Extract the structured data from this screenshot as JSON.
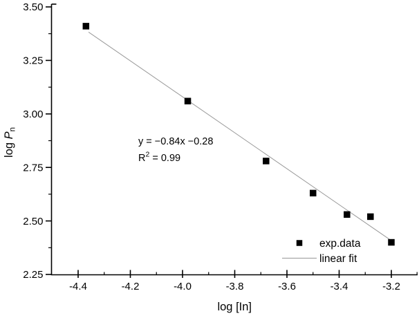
{
  "chart_data": {
    "type": "scatter",
    "title": "",
    "xlabel": "log [In]",
    "ylabel": {
      "prefix": "log ",
      "variable": "P",
      "subscript": "n"
    },
    "xlim": [
      -4.5,
      -3.1
    ],
    "ylim": [
      2.25,
      3.53
    ],
    "grid": false,
    "xticks": {
      "values": [
        -4.4,
        -4.2,
        -4.0,
        -3.8,
        -3.6,
        -3.4,
        -3.2
      ],
      "labels": [
        "-4.4",
        "-4.2",
        "-4.0",
        "-3.8",
        "-3.6",
        "-3.4",
        "-3.2"
      ],
      "minor": [
        -4.3,
        -4.1,
        -3.9,
        -3.7,
        -3.5,
        -3.3,
        -3.1
      ]
    },
    "yticks": {
      "values": [
        2.25,
        2.5,
        2.75,
        3.0,
        3.25,
        3.5
      ],
      "labels": [
        "2.25",
        "2.50",
        "2.75",
        "3.00",
        "3.25",
        "3.50"
      ],
      "minor": [
        2.375,
        2.625,
        2.875,
        3.125,
        3.375
      ]
    },
    "series": [
      {
        "name": "exp.data",
        "type": "scatter",
        "marker": "filled-square",
        "color": "#000000",
        "points": [
          [
            -4.37,
            3.41
          ],
          [
            -3.98,
            3.06
          ],
          [
            -3.68,
            2.78
          ],
          [
            -3.5,
            2.63
          ],
          [
            -3.37,
            2.53
          ],
          [
            -3.28,
            2.52
          ],
          [
            -3.2,
            2.4
          ]
        ]
      },
      {
        "name": "linear fit",
        "type": "line",
        "color": "#999999",
        "slope": -0.84,
        "intercept": -0.28,
        "x_range": [
          -4.36,
          -3.2
        ]
      }
    ],
    "annotation": {
      "equation": "y = −0.84x −0.28",
      "r2_base": "R",
      "r2_sup": "2",
      "r2_rest": " = 0.99"
    },
    "legend": {
      "position": "inside-bottom-right",
      "items": [
        {
          "label": "exp.data",
          "swatch": "filled-square"
        },
        {
          "label": "linear fit",
          "swatch": "line"
        }
      ]
    },
    "colors": {
      "axis": "#000000",
      "text": "#000000",
      "fit_line": "#999999",
      "legend_line": "#a6a6a6"
    }
  }
}
